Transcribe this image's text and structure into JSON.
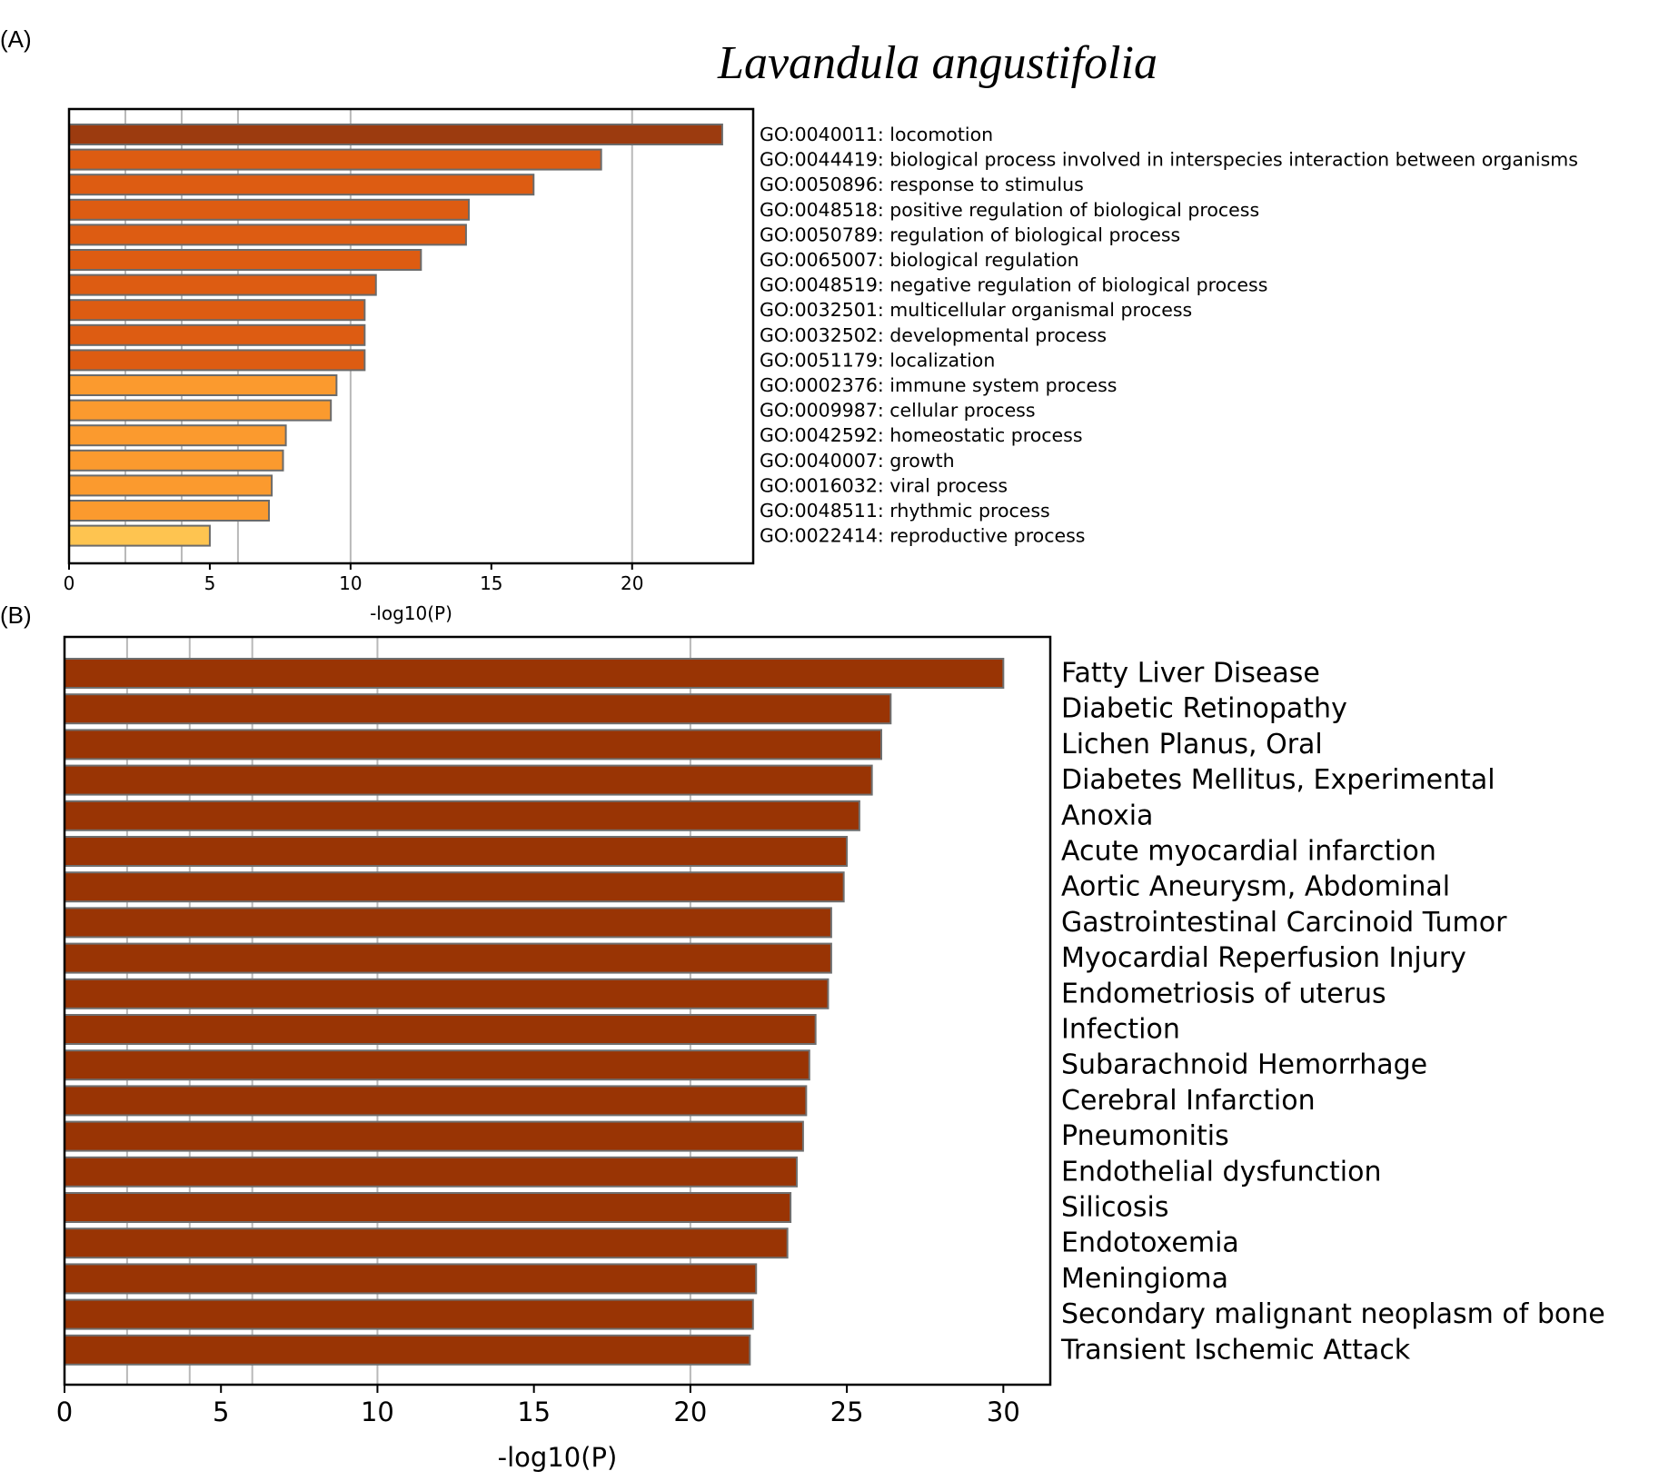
{
  "figure": {
    "title": "Lavandula angustifolia"
  },
  "chart_data": [
    {
      "panel": "(A)",
      "type": "bar",
      "orientation": "horizontal",
      "title": "",
      "xlabel": "-log10(P)",
      "ylabel": "",
      "xlim": [
        0,
        24.3
      ],
      "xticks": [
        0,
        5,
        10,
        15,
        20
      ],
      "gridlines": [
        2,
        4,
        6,
        10,
        20
      ],
      "categories": [
        "GO:0040011: locomotion",
        "GO:0044419: biological process involved in interspecies interaction between organisms",
        "GO:0050896: response to stimulus",
        "GO:0048518: positive regulation of biological process",
        "GO:0050789: regulation of biological process",
        "GO:0065007: biological regulation",
        "GO:0048519: negative regulation of biological process",
        "GO:0032501: multicellular organismal process",
        "GO:0032502: developmental process",
        "GO:0051179: localization",
        "GO:0002376: immune system process",
        "GO:0009987: cellular process",
        "GO:0042592: homeostatic process",
        "GO:0040007: growth",
        "GO:0016032: viral process",
        "GO:0048511: rhythmic process",
        "GO:0022414: reproductive process"
      ],
      "values": [
        23.2,
        18.9,
        16.5,
        14.2,
        14.1,
        12.5,
        10.9,
        10.5,
        10.5,
        10.5,
        9.5,
        9.3,
        7.7,
        7.6,
        7.2,
        7.1,
        5.0
      ],
      "colors": [
        "#9c3b0f",
        "#dd5c12",
        "#dd5c12",
        "#dd5c12",
        "#dd5c12",
        "#dd5c12",
        "#dd5c12",
        "#dd5c12",
        "#dd5c12",
        "#dd5c12",
        "#fb9a2e",
        "#fb9a2e",
        "#fb9a2e",
        "#fb9a2e",
        "#fb9a2e",
        "#fb9a2e",
        "#fec450"
      ]
    },
    {
      "panel": "(B)",
      "type": "bar",
      "orientation": "horizontal",
      "title": "",
      "xlabel": "-log10(P)",
      "ylabel": "",
      "xlim": [
        0,
        31.5
      ],
      "xticks": [
        0,
        5,
        10,
        15,
        20,
        25,
        30
      ],
      "gridlines": [
        2,
        4,
        6,
        10,
        20
      ],
      "categories": [
        "Fatty Liver Disease",
        "Diabetic Retinopathy",
        "Lichen Planus, Oral",
        "Diabetes Mellitus, Experimental",
        "Anoxia",
        "Acute myocardial infarction",
        "Aortic Aneurysm, Abdominal",
        "Gastrointestinal Carcinoid Tumor",
        "Myocardial Reperfusion Injury",
        "Endometriosis of uterus",
        "Infection",
        "Subarachnoid Hemorrhage",
        "Cerebral Infarction",
        "Pneumonitis",
        "Endothelial dysfunction",
        "Silicosis",
        "Endotoxemia",
        "Meningioma",
        "Secondary malignant neoplasm of bone",
        "Transient Ischemic Attack"
      ],
      "values": [
        30.0,
        26.4,
        26.1,
        25.8,
        25.4,
        25.0,
        24.9,
        24.5,
        24.5,
        24.4,
        24.0,
        23.8,
        23.7,
        23.6,
        23.4,
        23.2,
        23.1,
        22.1,
        22.0,
        21.9
      ],
      "colors": [
        "#993404"
      ]
    }
  ]
}
